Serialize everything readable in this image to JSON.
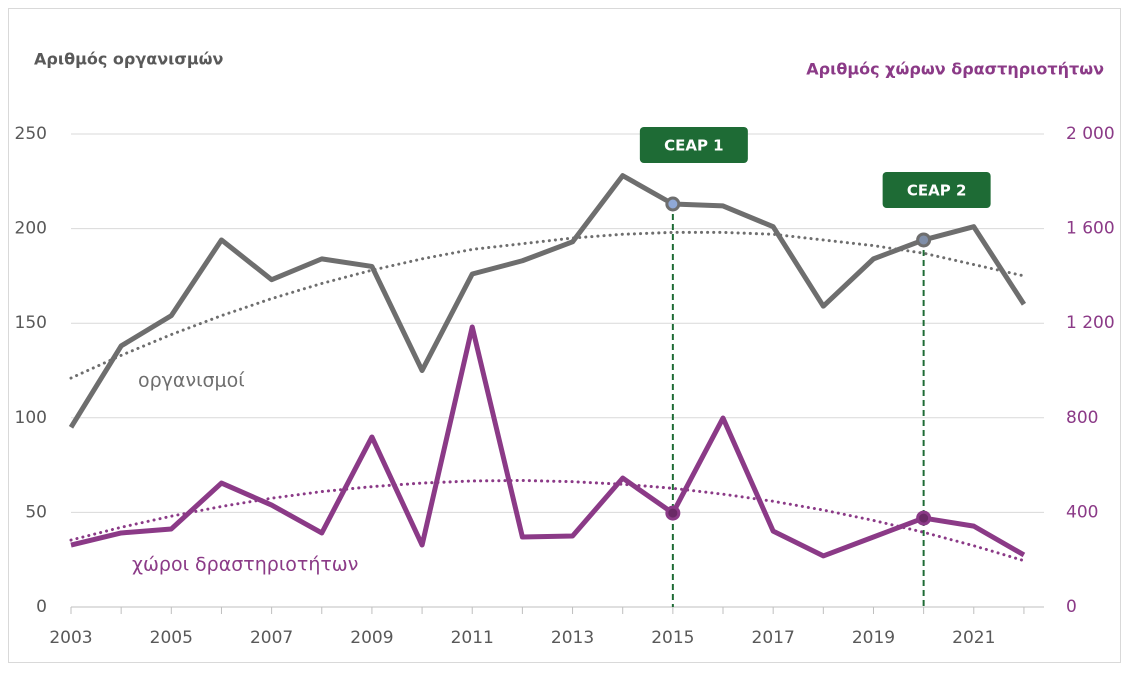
{
  "chart_data": {
    "type": "line",
    "ylabel": "Αριθμός οργανισμών",
    "y2label": "Αριθμός χώρων δραστηριοτήτων",
    "x": [
      2003,
      2004,
      2005,
      2006,
      2007,
      2008,
      2009,
      2010,
      2011,
      2012,
      2013,
      2014,
      2015,
      2016,
      2017,
      2018,
      2019,
      2020,
      2021,
      2022
    ],
    "xlim": [
      2003,
      2022.4
    ],
    "xticks": [
      2003,
      2005,
      2007,
      2009,
      2011,
      2013,
      2015,
      2017,
      2019,
      2021
    ],
    "ylim": [
      0,
      250
    ],
    "yticks": [
      0,
      50,
      100,
      150,
      200,
      250
    ],
    "y2lim": [
      0,
      2000
    ],
    "y2ticks": [
      0,
      400,
      800,
      {
        "value": 1200,
        "label": "1 200"
      },
      {
        "value": 1600,
        "label": "1 600"
      },
      {
        "value": 2000,
        "label": "2 000"
      }
    ],
    "grid": true,
    "series": [
      {
        "name": "οργανισμοί",
        "color": "#6e6e6e",
        "values": [
          95,
          138,
          154,
          194,
          173,
          184,
          180,
          125,
          176,
          183,
          193,
          228,
          213,
          212,
          201,
          159,
          184,
          194,
          201,
          160
        ],
        "trend": [
          121,
          133,
          144,
          154,
          163,
          171,
          178,
          184,
          189,
          192,
          195,
          197,
          198,
          198,
          197,
          194,
          191,
          187,
          181,
          175
        ]
      },
      {
        "name": "χώροι δραστηριοτήτων",
        "color": "#8b3a87",
        "axis": "y2",
        "values": [
          262,
          313,
          330,
          524,
          431,
          313,
          719,
          262,
          1184,
          296,
          300,
          545,
          397,
          799,
          321,
          216,
          296,
          376,
          342,
          220
        ],
        "trend": [
          283,
          337,
          384,
          425,
          460,
          488,
          509,
          524,
          533,
          535,
          530,
          519,
          502,
          477,
          447,
          410,
          366,
          316,
          259,
          196
        ]
      }
    ],
    "annotations": [
      {
        "text": "CEAP 1",
        "x": 2015
      },
      {
        "text": "CEAP 2",
        "x": 2020
      }
    ]
  }
}
